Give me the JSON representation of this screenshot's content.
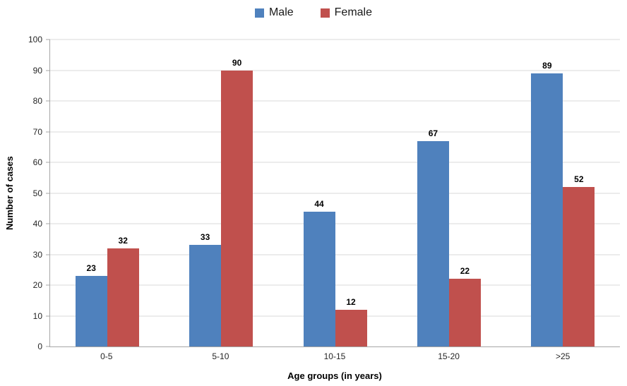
{
  "chart_data": {
    "type": "bar",
    "categories": [
      "0-5",
      "5-10",
      "10-15",
      "15-20",
      ">25"
    ],
    "series": [
      {
        "name": "Male",
        "color": "#4F81BD",
        "values": [
          23,
          33,
          44,
          67,
          89
        ]
      },
      {
        "name": "Female",
        "color": "#C0504D",
        "values": [
          32,
          90,
          12,
          22,
          52
        ]
      }
    ],
    "title": "",
    "xlabel": "Age groups (in years)",
    "ylabel": "Number of cases",
    "ylim": [
      0,
      100
    ],
    "ytick_step": 10,
    "yticks": [
      0,
      10,
      20,
      30,
      40,
      50,
      60,
      70,
      80,
      90,
      100
    ],
    "grid": true,
    "legend_position": "top",
    "colors": {
      "male": "#4F81BD",
      "female": "#C0504D",
      "gridline": "#D9D9D9",
      "axis": "#A6A6A6",
      "background": "#FFFFFF"
    }
  }
}
